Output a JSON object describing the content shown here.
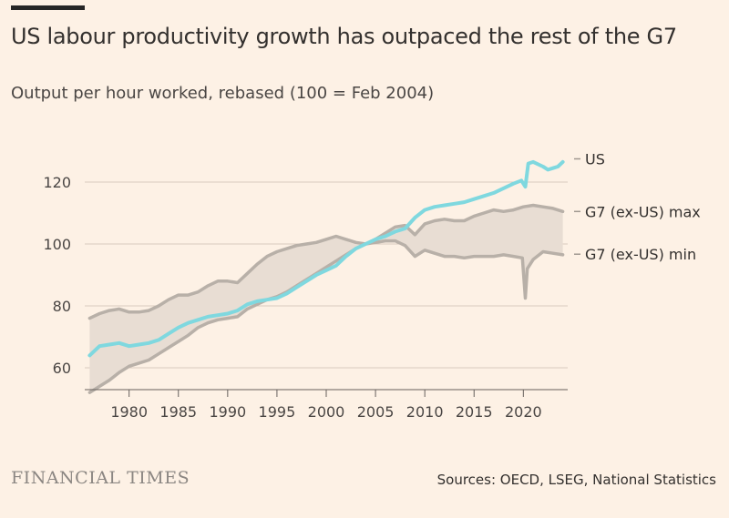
{
  "header": {
    "title": "US labour productivity growth has outpaced the rest of the G7",
    "subtitle": "Output per hour worked, rebased (100 = Feb 2004)"
  },
  "footer": {
    "logo": "FINANCIAL TIMES",
    "source": "Sources: OECD, LSEG, National Statistics"
  },
  "colors": {
    "background": "#fdf1e5",
    "us": "#7fd8df",
    "g7_band": "#e8ddd3",
    "g7_lines": "#b8b0a8",
    "grid": "#d9cbbf"
  },
  "chart_data": {
    "type": "line",
    "title": "US labour productivity growth has outpaced the rest of the G7",
    "subtitle": "Output per hour worked, rebased (100 = Feb 2004)",
    "xlim": [
      1975.5,
      2024.5
    ],
    "ylim": [
      50,
      140
    ],
    "yticks": [
      60,
      80,
      100,
      120
    ],
    "xticks": [
      1980,
      1985,
      1990,
      1995,
      2000,
      2005,
      2010,
      2015,
      2020
    ],
    "grid": true,
    "legend_placement": "right-end-labels",
    "series": [
      {
        "name": "US",
        "x": [
          1976,
          1977,
          1978,
          1979,
          1980,
          1981,
          1982,
          1983,
          1984,
          1985,
          1986,
          1987,
          1988,
          1989,
          1990,
          1991,
          1992,
          1993,
          1994,
          1995,
          1996,
          1997,
          1998,
          1999,
          2000,
          2001,
          2002,
          2003,
          2004,
          2005,
          2006,
          2007,
          2008,
          2009,
          2010,
          2011,
          2012,
          2013,
          2014,
          2015,
          2016,
          2017,
          2018,
          2019,
          2019.8,
          2020.2,
          2020.5,
          2021,
          2022,
          2022.5,
          2023,
          2023.5,
          2024
        ],
        "values": [
          64,
          67,
          67.5,
          68,
          67,
          67.5,
          68,
          69,
          71,
          73,
          74.5,
          75.5,
          76.5,
          77,
          77.5,
          78.5,
          80.5,
          81.5,
          82,
          82.5,
          84,
          86,
          88,
          90,
          91.5,
          93,
          96,
          98.5,
          100,
          101.5,
          102.5,
          104,
          105,
          108.5,
          111,
          112,
          112.5,
          113,
          113.5,
          114.5,
          115.5,
          116.5,
          118,
          119.5,
          120.5,
          118.5,
          126,
          126.5,
          125,
          124,
          124.5,
          125,
          126.5
        ]
      },
      {
        "name": "G7 (ex-US) max",
        "x": [
          1976,
          1977,
          1978,
          1979,
          1980,
          1981,
          1982,
          1983,
          1984,
          1985,
          1986,
          1987,
          1988,
          1989,
          1990,
          1991,
          1992,
          1993,
          1994,
          1995,
          1996,
          1997,
          1998,
          1999,
          2000,
          2001,
          2002,
          2003,
          2004,
          2005,
          2006,
          2007,
          2008,
          2009,
          2010,
          2011,
          2012,
          2013,
          2014,
          2015,
          2016,
          2017,
          2018,
          2019,
          2020,
          2021,
          2022,
          2023,
          2024
        ],
        "values": [
          76,
          77.5,
          78.5,
          79,
          78,
          78,
          78.5,
          80,
          82,
          83.5,
          83.5,
          84.5,
          86.5,
          88,
          88,
          87.5,
          90.5,
          93.5,
          96,
          97.5,
          98.5,
          99.5,
          100,
          100.5,
          101.5,
          102.5,
          101.5,
          100.5,
          100,
          101.5,
          103.5,
          105.5,
          106,
          103,
          106.5,
          107.5,
          108,
          107.5,
          107.5,
          109,
          110,
          111,
          110.5,
          111,
          112,
          112.5,
          112,
          111.5,
          110.5
        ]
      },
      {
        "name": "G7 (ex-US) min",
        "x": [
          1976,
          1977,
          1978,
          1979,
          1980,
          1981,
          1982,
          1983,
          1984,
          1985,
          1986,
          1987,
          1988,
          1989,
          1990,
          1991,
          1992,
          1993,
          1994,
          1995,
          1996,
          1997,
          1998,
          1999,
          2000,
          2001,
          2002,
          2003,
          2004,
          2005,
          2006,
          2007,
          2008,
          2009,
          2010,
          2011,
          2012,
          2013,
          2014,
          2015,
          2016,
          2017,
          2018,
          2019,
          2019.9,
          2020.2,
          2020.4,
          2021,
          2022,
          2023,
          2024
        ],
        "values": [
          52,
          54,
          56,
          58.5,
          60.5,
          61.5,
          62.5,
          64.5,
          66.5,
          68.5,
          70.5,
          73,
          74.5,
          75.5,
          76,
          76.5,
          79,
          80.5,
          82,
          83,
          84.5,
          86.5,
          88.5,
          90.5,
          92.5,
          94.5,
          96.5,
          98.5,
          100,
          100.5,
          101,
          101,
          99.5,
          96,
          98,
          97,
          96,
          96,
          95.5,
          96,
          96,
          96,
          96.5,
          96,
          95.5,
          82.5,
          92,
          95,
          97.5,
          97,
          96.5
        ]
      }
    ],
    "end_labels": [
      "US",
      "G7 (ex-US) max",
      "G7 (ex-US) min"
    ]
  }
}
